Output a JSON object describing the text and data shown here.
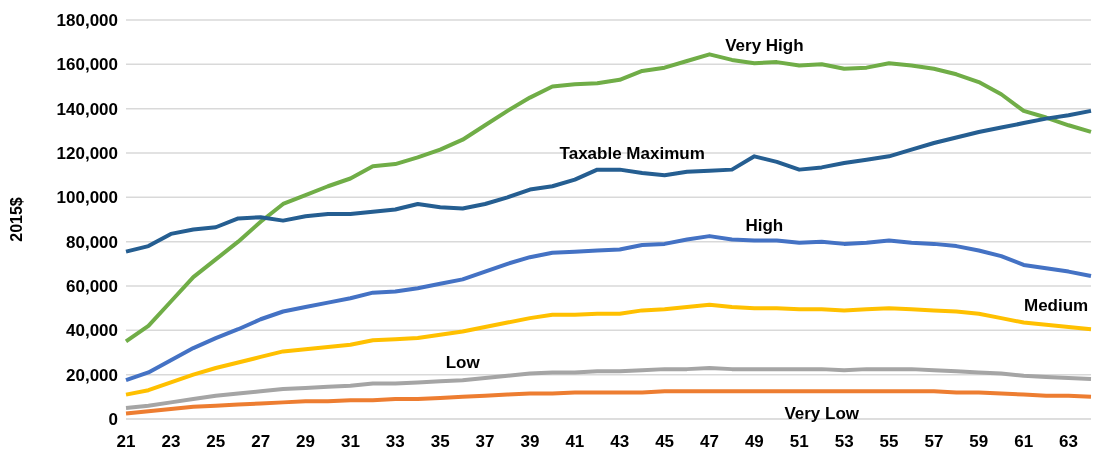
{
  "chart_data": {
    "type": "line",
    "ylabel": "2015$",
    "categories": [
      "21",
      null,
      "23",
      null,
      "25",
      null,
      "27",
      null,
      "29",
      null,
      "31",
      null,
      "33",
      null,
      "35",
      null,
      "37",
      null,
      "39",
      null,
      "41",
      null,
      "43",
      null,
      "45",
      null,
      "47",
      null,
      "49",
      null,
      "51",
      null,
      "53",
      null,
      "55",
      null,
      "57",
      null,
      "59",
      null,
      "61",
      null,
      "63",
      null
    ],
    "series": [
      {
        "name": "Very High",
        "color": "#70ad47",
        "values": [
          35000,
          42000,
          53000,
          64000,
          72000,
          80000,
          89000,
          97000,
          101000,
          105000,
          108500,
          114000,
          115000,
          118000,
          121500,
          126000,
          132500,
          139000,
          145000,
          150000,
          151000,
          151500,
          153000,
          157000,
          158500,
          161500,
          164500,
          162000,
          160500,
          161000,
          159500,
          160000,
          158000,
          158500,
          160500,
          159500,
          158000,
          155500,
          152000,
          146500,
          139000,
          136000,
          132500,
          129500
        ]
      },
      {
        "name": "Taxable Maximum",
        "color": "#255e91",
        "values": [
          75500,
          78000,
          83500,
          85500,
          86500,
          90500,
          91000,
          89500,
          91500,
          92500,
          92500,
          93500,
          94500,
          97000,
          95500,
          95000,
          97000,
          100000,
          103500,
          105000,
          108000,
          112500,
          112500,
          111000,
          110000,
          111500,
          112000,
          112500,
          118500,
          116000,
          112500,
          113500,
          115500,
          117000,
          118500,
          121500,
          124500,
          127000,
          129500,
          131500,
          133500,
          135500,
          137000,
          139000
        ]
      },
      {
        "name": "High",
        "color": "#4472c4",
        "values": [
          17500,
          21000,
          26500,
          32000,
          36500,
          40500,
          45000,
          48500,
          50500,
          52500,
          54500,
          57000,
          57500,
          59000,
          61000,
          63000,
          66500,
          70000,
          73000,
          75000,
          75500,
          76000,
          76500,
          78500,
          79000,
          81000,
          82500,
          81000,
          80500,
          80500,
          79500,
          80000,
          79000,
          79500,
          80500,
          79500,
          79000,
          78000,
          76000,
          73500,
          69500,
          68000,
          66500,
          64500
        ]
      },
      {
        "name": "Medium",
        "color": "#ffc000",
        "values": [
          11000,
          13000,
          16500,
          20000,
          23000,
          25500,
          28000,
          30500,
          31500,
          32500,
          33500,
          35500,
          36000,
          36500,
          38000,
          39500,
          41500,
          43500,
          45500,
          47000,
          47000,
          47500,
          47500,
          49000,
          49500,
          50500,
          51500,
          50500,
          50000,
          50000,
          49500,
          49500,
          49000,
          49500,
          50000,
          49500,
          49000,
          48500,
          47500,
          45500,
          43500,
          42500,
          41500,
          40500
        ]
      },
      {
        "name": "Low",
        "color": "#a5a5a5",
        "values": [
          5000,
          6000,
          7500,
          9000,
          10500,
          11500,
          12500,
          13500,
          14000,
          14500,
          15000,
          16000,
          16000,
          16500,
          17000,
          17500,
          18500,
          19500,
          20500,
          21000,
          21000,
          21500,
          21500,
          22000,
          22500,
          22500,
          23000,
          22500,
          22500,
          22500,
          22500,
          22500,
          22000,
          22500,
          22500,
          22500,
          22000,
          21500,
          21000,
          20500,
          19500,
          19000,
          18500,
          18000
        ]
      },
      {
        "name": "Very Low",
        "color": "#ed7d31",
        "values": [
          2500,
          3500,
          4500,
          5500,
          6000,
          6500,
          7000,
          7500,
          8000,
          8000,
          8500,
          8500,
          9000,
          9000,
          9500,
          10000,
          10500,
          11000,
          11500,
          11500,
          12000,
          12000,
          12000,
          12000,
          12500,
          12500,
          12500,
          12500,
          12500,
          12500,
          12500,
          12500,
          12500,
          12500,
          12500,
          12500,
          12500,
          12000,
          12000,
          11500,
          11000,
          10500,
          10500,
          10000
        ]
      }
    ],
    "ylim": [
      0,
      180000
    ],
    "yticks": [
      0,
      {
        "value": 20000,
        "label": "20,000"
      },
      {
        "value": 40000,
        "label": "40,000"
      },
      {
        "value": 60000,
        "label": "60,000"
      },
      {
        "value": 80000,
        "label": "80,000"
      },
      {
        "value": 100000,
        "label": "100,000"
      },
      {
        "value": 120000,
        "label": "120,000"
      },
      {
        "value": 140000,
        "label": "140,000"
      },
      {
        "value": 160000,
        "label": "160,000"
      },
      {
        "value": 180000,
        "label": "180,000"
      }
    ],
    "grid": "y",
    "legend": false,
    "marker": "none",
    "line_style": "solid"
  }
}
